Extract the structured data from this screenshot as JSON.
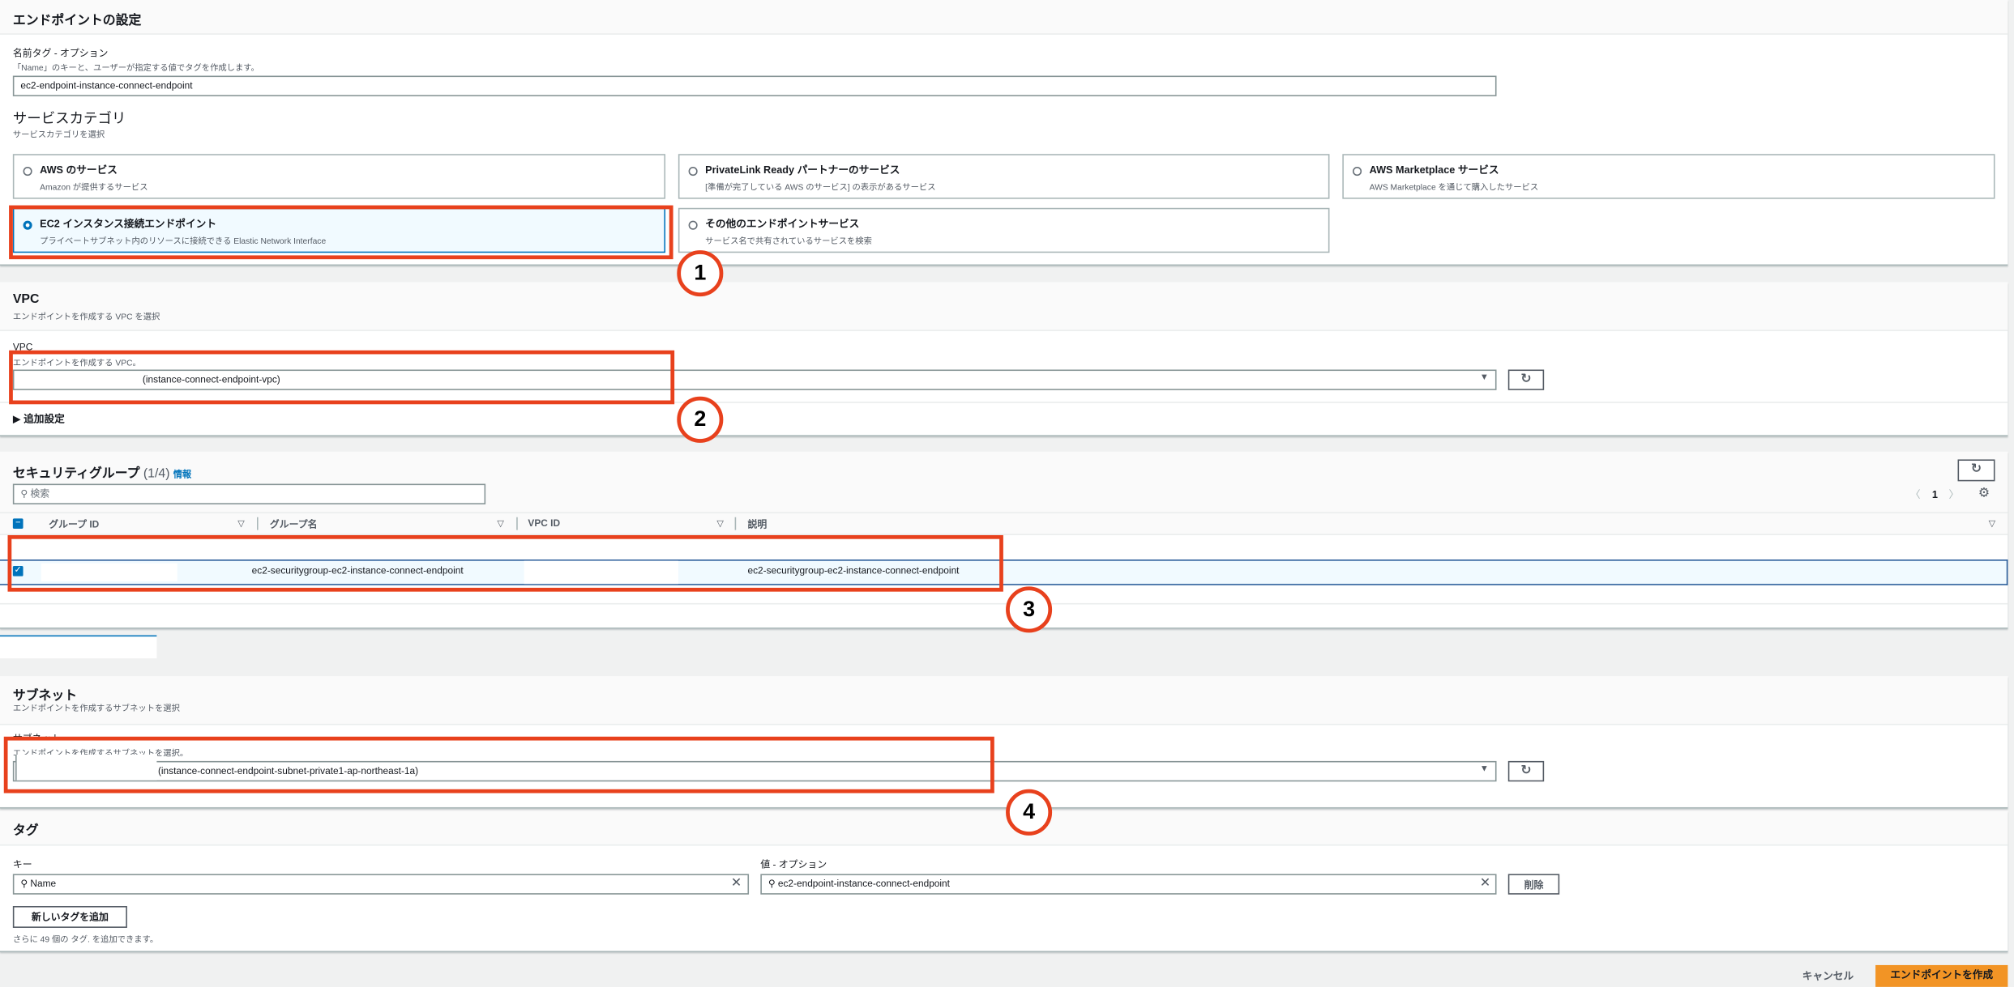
{
  "endpoint_settings": {
    "title": "エンドポイントの設定",
    "name_tag_label": "名前タグ - オプション",
    "name_tag_desc": "「Name」のキーと、ユーザーが指定する値でタグを作成します。",
    "name_tag_value": "ec2-endpoint-instance-connect-endpoint",
    "service_category_title": "サービスカテゴリ",
    "service_category_desc": "サービスカテゴリを選択",
    "tiles": [
      {
        "title": "AWS のサービス",
        "desc": "Amazon が提供するサービス",
        "selected": false
      },
      {
        "title": "PrivateLink Ready パートナーのサービス",
        "desc": "[準備が完了している AWS のサービス] の表示があるサービス",
        "selected": false
      },
      {
        "title": "AWS Marketplace サービス",
        "desc": "AWS Marketplace を通じて購入したサービス",
        "selected": false
      },
      {
        "title": "EC2 インスタンス接続エンドポイント",
        "desc": "プライベートサブネット内のリソースに接続できる Elastic Network Interface",
        "selected": true
      },
      {
        "title": "その他のエンドポイントサービス",
        "desc": "サービス名で共有されているサービスを検索",
        "selected": false
      }
    ]
  },
  "vpc": {
    "title": "VPC",
    "desc": "エンドポイントを作成する VPC を選択",
    "field_label": "VPC",
    "field_desc": "エンドポイントを作成する VPC。",
    "selected_value": "(instance-connect-endpoint-vpc)",
    "additional_settings": "追加設定"
  },
  "security_groups": {
    "title": "セキュリティグループ",
    "count": "(1/4)",
    "info_link": "情報",
    "search_placeholder": "検索",
    "page": "1",
    "columns": [
      "グループ ID",
      "グループ名",
      "VPC ID",
      "説明"
    ],
    "rows": [
      {
        "group_id": "",
        "group_name": "ec2-securitygroup-ec2-instance-connect-endpoint",
        "vpc_id": "",
        "description": "ec2-securitygroup-ec2-instance-connect-endpoint",
        "selected": true
      }
    ]
  },
  "subnet": {
    "title": "サブネット",
    "desc": "エンドポイントを作成するサブネットを選択",
    "field_label": "サブネット",
    "field_desc": "エンドポイントを作成するサブネットを選択。",
    "selected_value": "(instance-connect-endpoint-subnet-private1-ap-northeast-1a)"
  },
  "tags": {
    "title": "タグ",
    "key_label": "キー",
    "value_label": "値 - オプション",
    "key_value": "Name",
    "value_value": "ec2-endpoint-instance-connect-endpoint",
    "remove_label": "削除",
    "add_label": "新しいタグを追加",
    "note": "さらに 49 個の タグ. を追加できます。"
  },
  "footer": {
    "cancel_label": "キャンセル",
    "create_label": "エンドポイントを作成"
  },
  "annotations": [
    "1",
    "2",
    "3",
    "4"
  ],
  "colors": {
    "annotation": "#e8411d",
    "primary": "#f29425",
    "selected": "#0073bb"
  }
}
